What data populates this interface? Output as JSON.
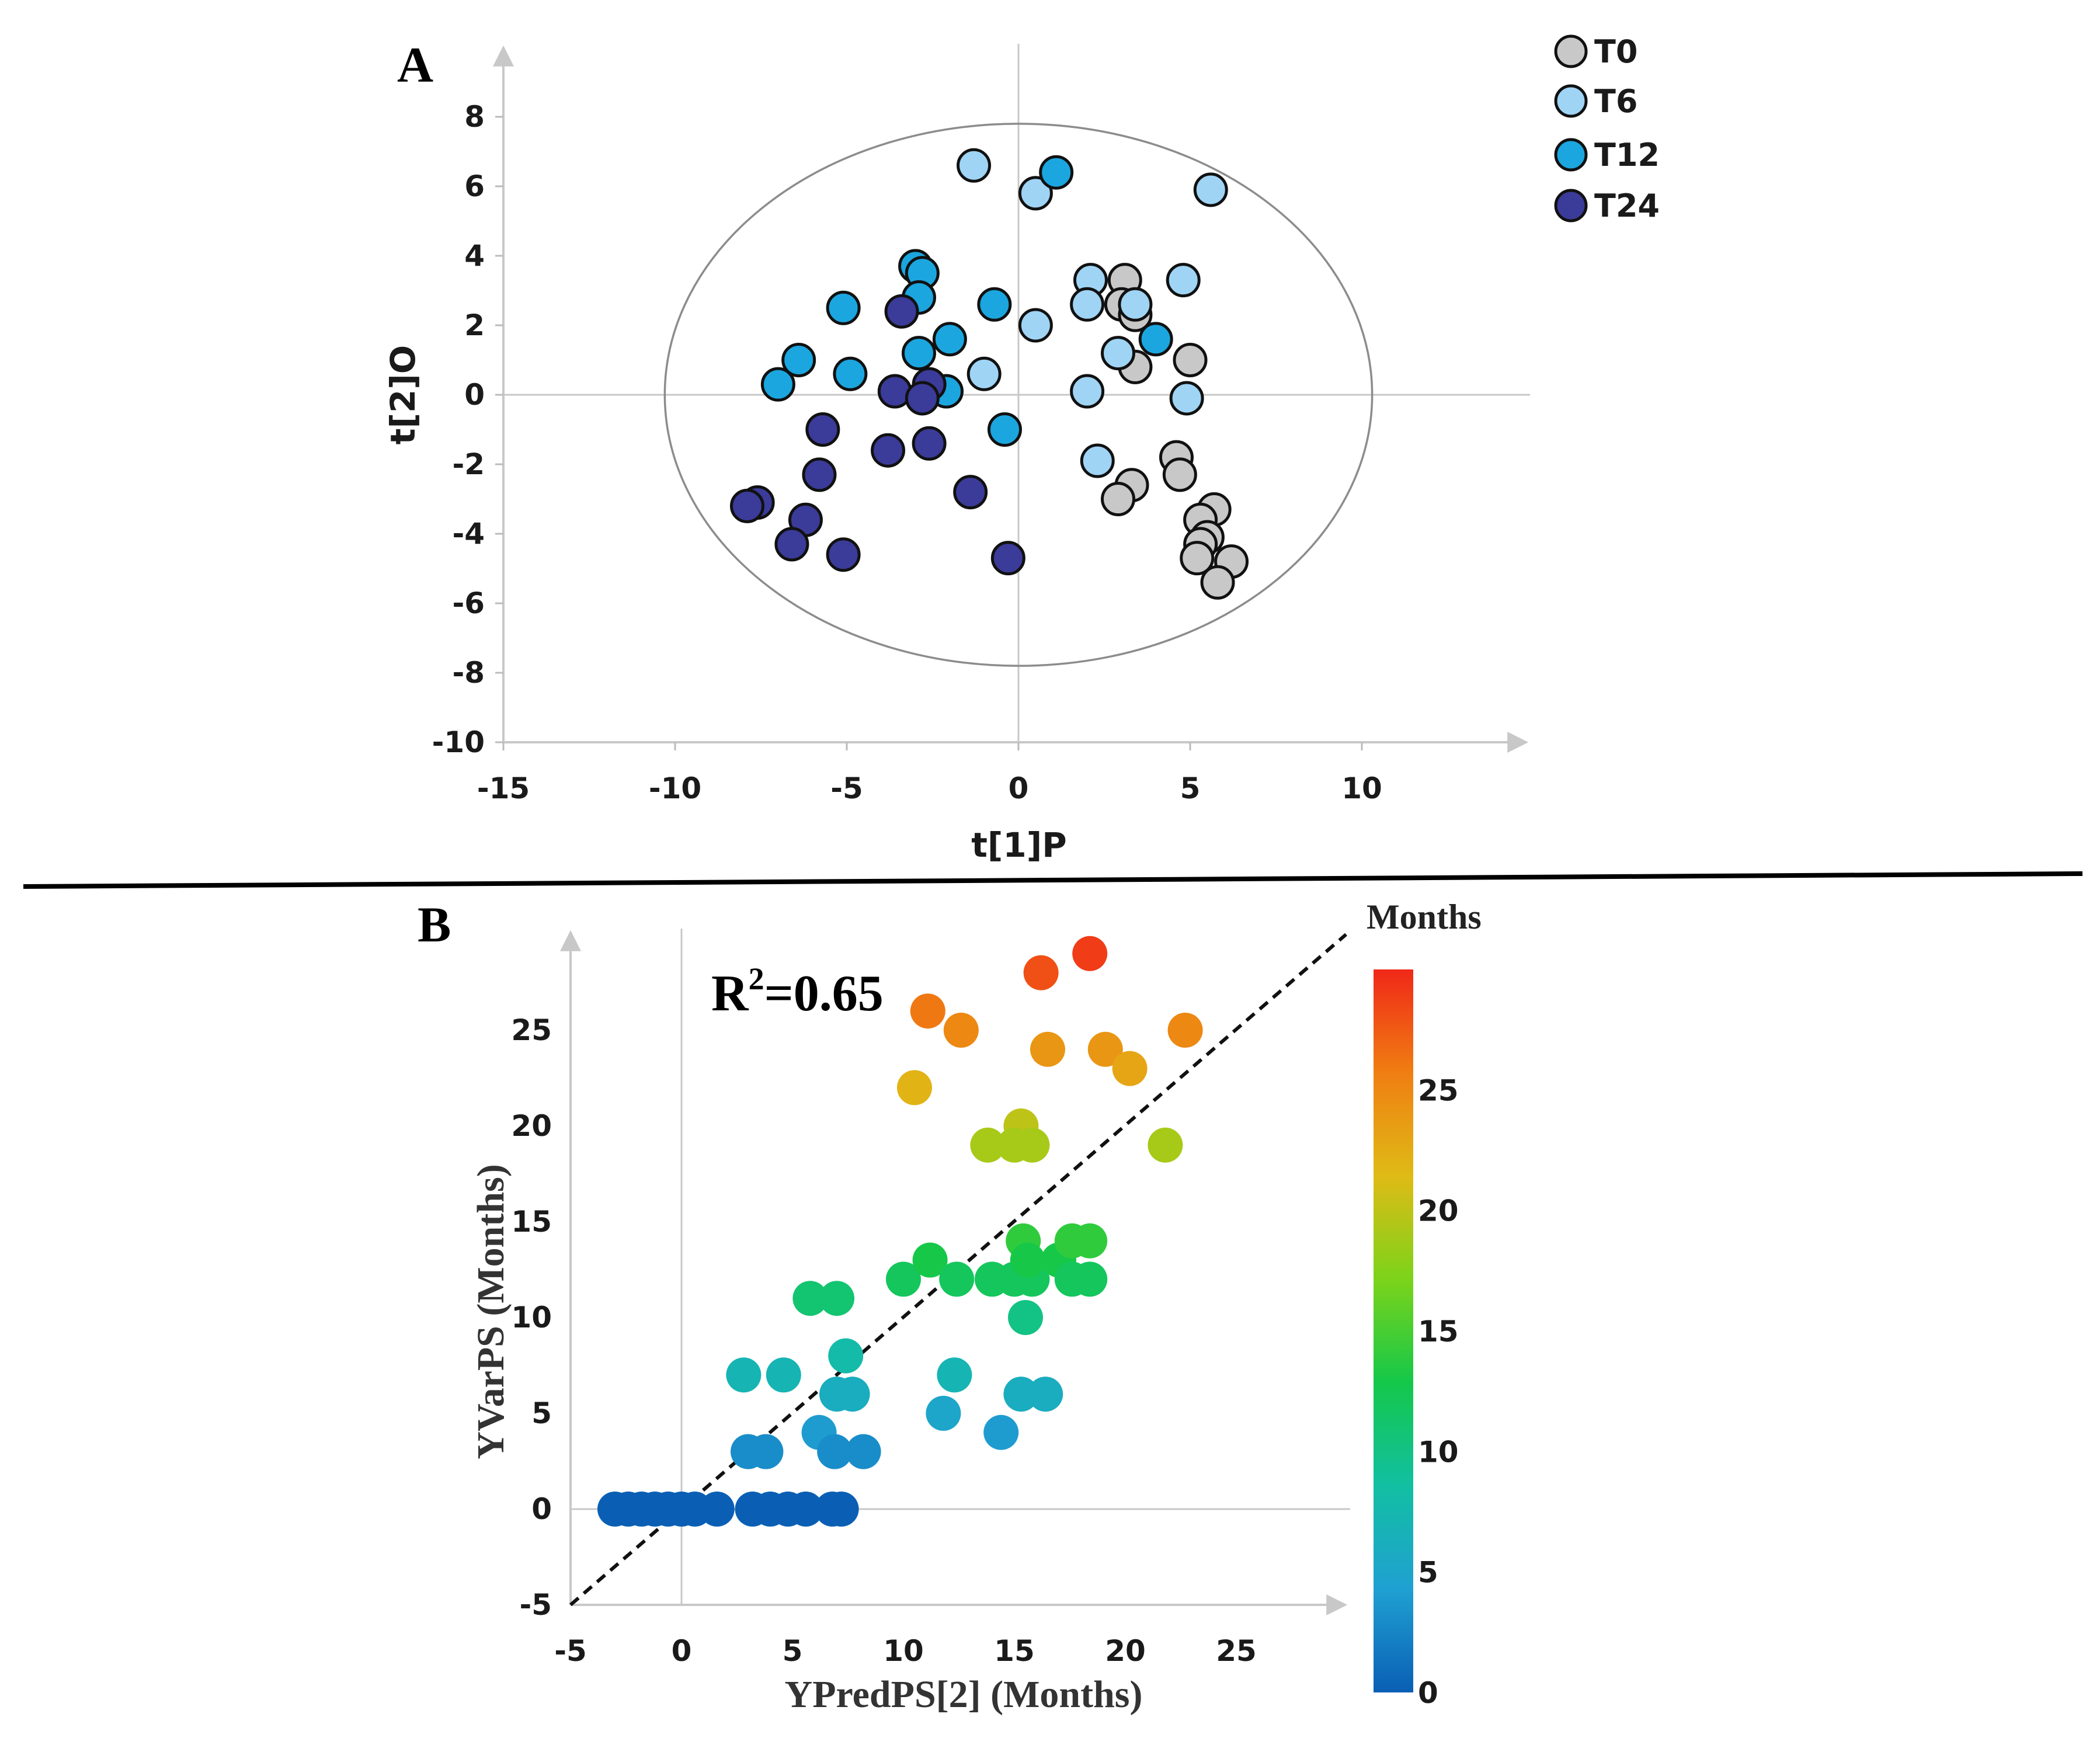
{
  "chart_data": [
    {
      "panel": "A",
      "type": "scatter",
      "xlabel": "t[1]P",
      "ylabel": "t[2]O",
      "xlim": [
        -15,
        15
      ],
      "ylim": [
        -10,
        9
      ],
      "xticks": [
        -15,
        -10,
        -5,
        0,
        5,
        10
      ],
      "yticks": [
        -10,
        -8,
        -6,
        -4,
        -2,
        0,
        2,
        4,
        6,
        8
      ],
      "x_tick_labels": [
        "-15",
        "-10",
        "-5",
        "0",
        "5",
        "10"
      ],
      "y_tick_labels": [
        "-10",
        "-8",
        "-6",
        "-4",
        "-2",
        "0",
        "2",
        "4",
        "6",
        "8"
      ],
      "ellipse": {
        "cx": 0,
        "cy": 0,
        "rx": 10.3,
        "ry": 7.8
      },
      "legend_position": "top-right",
      "series": [
        {
          "name": "T0",
          "color": "#c8c8c8",
          "points": [
            [
              3.1,
              3.3
            ],
            [
              3.0,
              2.6
            ],
            [
              3.4,
              2.3
            ],
            [
              3.4,
              0.8
            ],
            [
              5.0,
              1.0
            ],
            [
              4.6,
              -1.8
            ],
            [
              4.7,
              -2.3
            ],
            [
              3.3,
              -2.6
            ],
            [
              2.9,
              -3.0
            ],
            [
              5.7,
              -3.3
            ],
            [
              5.3,
              -3.6
            ],
            [
              5.5,
              -4.1
            ],
            [
              5.3,
              -4.3
            ],
            [
              5.2,
              -4.7
            ],
            [
              6.2,
              -4.8
            ],
            [
              5.8,
              -5.4
            ]
          ]
        },
        {
          "name": "T6",
          "color": "#9fd4f5",
          "points": [
            [
              -1.3,
              6.6
            ],
            [
              0.5,
              5.8
            ],
            [
              5.6,
              5.9
            ],
            [
              2.1,
              3.3
            ],
            [
              4.8,
              3.3
            ],
            [
              2.0,
              2.6
            ],
            [
              3.4,
              2.6
            ],
            [
              0.5,
              2.0
            ],
            [
              2.9,
              1.2
            ],
            [
              -1.0,
              0.6
            ],
            [
              2.0,
              0.1
            ],
            [
              4.9,
              -0.1
            ],
            [
              2.3,
              -1.9
            ]
          ]
        },
        {
          "name": "T12",
          "color": "#1ba6df",
          "points": [
            [
              1.1,
              6.4
            ],
            [
              -3.0,
              3.7
            ],
            [
              -2.8,
              3.5
            ],
            [
              -2.9,
              2.8
            ],
            [
              -5.1,
              2.5
            ],
            [
              -0.7,
              2.6
            ],
            [
              -2.0,
              1.6
            ],
            [
              4.0,
              1.6
            ],
            [
              -2.9,
              1.2
            ],
            [
              -6.4,
              1.0
            ],
            [
              -4.9,
              0.6
            ],
            [
              -7.0,
              0.3
            ],
            [
              -2.1,
              0.1
            ],
            [
              -0.4,
              -1.0
            ]
          ]
        },
        {
          "name": "T24",
          "color": "#3b3b99",
          "points": [
            [
              -3.4,
              2.4
            ],
            [
              -3.6,
              0.1
            ],
            [
              -2.6,
              0.3
            ],
            [
              -2.8,
              -0.1
            ],
            [
              -5.7,
              -1.0
            ],
            [
              -3.8,
              -1.6
            ],
            [
              -2.6,
              -1.4
            ],
            [
              -5.8,
              -2.3
            ],
            [
              -1.4,
              -2.8
            ],
            [
              -7.6,
              -3.1
            ],
            [
              -7.9,
              -3.2
            ],
            [
              -6.2,
              -3.6
            ],
            [
              -6.6,
              -4.3
            ],
            [
              -5.1,
              -4.6
            ],
            [
              -0.3,
              -4.7
            ]
          ]
        }
      ]
    },
    {
      "panel": "B",
      "type": "scatter",
      "xlabel": "YPredPS[2] (Months)",
      "ylabel": "YVarPS (Months)",
      "xlim": [
        -5,
        30
      ],
      "ylim": [
        -5,
        30
      ],
      "xticks": [
        -5,
        0,
        5,
        10,
        15,
        20,
        25
      ],
      "yticks": [
        -5,
        0,
        5,
        10,
        15,
        20,
        25
      ],
      "x_tick_labels": [
        "-5",
        "0",
        "5",
        "10",
        "15",
        "20",
        "25"
      ],
      "y_tick_labels": [
        "-5",
        "0",
        "5",
        "10",
        "15",
        "20",
        "25"
      ],
      "annotation": {
        "label": "R",
        "superscript": "2",
        "value": "=0.65",
        "r_squared": 0.65
      },
      "reference_line": {
        "style": "dashed",
        "from": [
          -5,
          -5
        ],
        "to": [
          30,
          30
        ]
      },
      "colorbar": {
        "title": "Months",
        "range": [
          0,
          30
        ],
        "ticks": [
          0,
          5,
          10,
          15,
          20,
          25
        ],
        "tick_labels": [
          "0",
          "5",
          "10",
          "15",
          "20",
          "25"
        ],
        "stops": [
          "#0a5fb4",
          "#1fa0d2",
          "#12bfa2",
          "#14c84a",
          "#7cd31a",
          "#dfbb16",
          "#f07e12",
          "#f02818"
        ]
      },
      "points": [
        [
          -3.0,
          0
        ],
        [
          -2.4,
          0
        ],
        [
          -1.8,
          0
        ],
        [
          -1.2,
          0
        ],
        [
          -0.6,
          0
        ],
        [
          0.0,
          0
        ],
        [
          0.6,
          0
        ],
        [
          1.6,
          0
        ],
        [
          3.2,
          0
        ],
        [
          4.0,
          0
        ],
        [
          4.8,
          0
        ],
        [
          5.6,
          0
        ],
        [
          6.8,
          0
        ],
        [
          7.2,
          0
        ],
        [
          3.0,
          3
        ],
        [
          3.8,
          3
        ],
        [
          6.2,
          4
        ],
        [
          6.9,
          3
        ],
        [
          8.2,
          3
        ],
        [
          2.8,
          7
        ],
        [
          4.6,
          7
        ],
        [
          7.0,
          6
        ],
        [
          7.7,
          6
        ],
        [
          7.4,
          8
        ],
        [
          5.8,
          11
        ],
        [
          7.0,
          11
        ],
        [
          11.8,
          5
        ],
        [
          12.3,
          7
        ],
        [
          14.4,
          4
        ],
        [
          15.3,
          6
        ],
        [
          16.4,
          6
        ],
        [
          10.0,
          12
        ],
        [
          11.2,
          13
        ],
        [
          12.4,
          12
        ],
        [
          14.0,
          12
        ],
        [
          15.0,
          12
        ],
        [
          15.4,
          14
        ],
        [
          15.8,
          12
        ],
        [
          15.6,
          13
        ],
        [
          15.5,
          10
        ],
        [
          17.0,
          13
        ],
        [
          17.6,
          14
        ],
        [
          17.6,
          12
        ],
        [
          18.4,
          14
        ],
        [
          18.4,
          12
        ],
        [
          13.8,
          19
        ],
        [
          15.3,
          20
        ],
        [
          15.0,
          19
        ],
        [
          15.8,
          19
        ],
        [
          21.8,
          19
        ],
        [
          10.5,
          22
        ],
        [
          16.5,
          24
        ],
        [
          19.1,
          24
        ],
        [
          20.2,
          23
        ],
        [
          22.7,
          25
        ],
        [
          12.6,
          25
        ],
        [
          11.1,
          26
        ],
        [
          16.2,
          28
        ],
        [
          18.4,
          29
        ]
      ]
    }
  ]
}
